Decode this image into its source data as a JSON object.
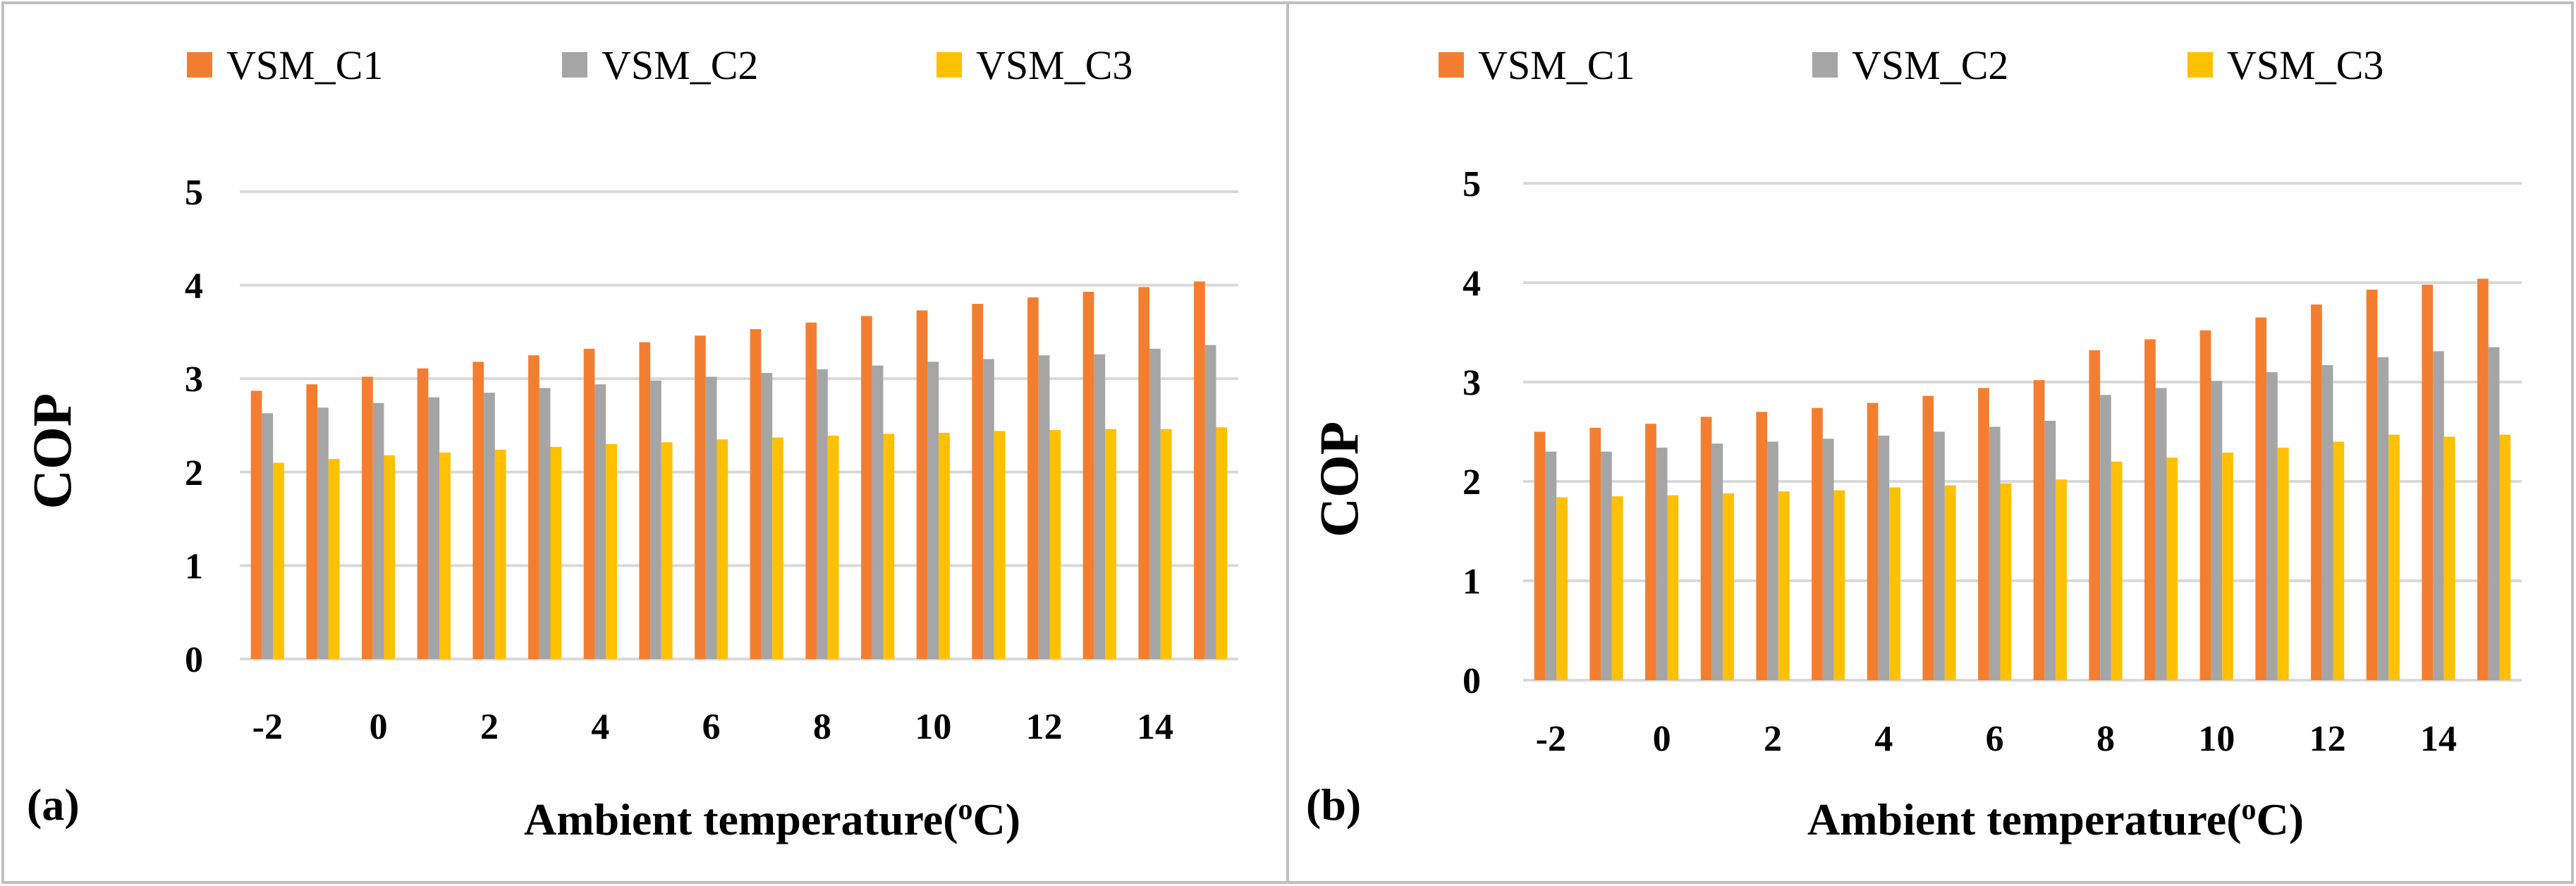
{
  "chart_data": [
    {
      "type": "bar",
      "panel_label": "(a)",
      "x": [
        -2,
        -1,
        0,
        1,
        2,
        3,
        4,
        5,
        6,
        7,
        8,
        9,
        10,
        11,
        12,
        13,
        14,
        15
      ],
      "x_tick_labels": [
        "-2",
        "0",
        "2",
        "4",
        "6",
        "8",
        "10",
        "12",
        "14"
      ],
      "series": [
        {
          "name": "VSM_C1",
          "color": "#F47E30",
          "values": [
            2.87,
            2.94,
            3.02,
            3.11,
            3.18,
            3.25,
            3.32,
            3.39,
            3.46,
            3.53,
            3.6,
            3.67,
            3.73,
            3.8,
            3.87,
            3.93,
            3.98,
            4.04
          ]
        },
        {
          "name": "VSM_C2",
          "color": "#A5A5A5",
          "values": [
            2.63,
            2.69,
            2.74,
            2.8,
            2.85,
            2.9,
            2.94,
            2.98,
            3.02,
            3.06,
            3.1,
            3.14,
            3.18,
            3.21,
            3.25,
            3.26,
            3.32,
            3.36
          ]
        },
        {
          "name": "VSM_C3",
          "color": "#FFC000",
          "values": [
            2.1,
            2.14,
            2.18,
            2.21,
            2.24,
            2.27,
            2.3,
            2.32,
            2.35,
            2.37,
            2.39,
            2.41,
            2.42,
            2.44,
            2.45,
            2.46,
            2.46,
            2.48
          ]
        }
      ],
      "ylabel": "COP",
      "xlabel_main": "Ambient temperature(",
      "xlabel_sup": "o",
      "xlabel_end": "C)",
      "ylim": [
        0,
        5
      ],
      "yticks": [
        "0",
        "1",
        "2",
        "3",
        "4",
        "5"
      ],
      "grid": true,
      "legend_position": "top"
    },
    {
      "type": "bar",
      "panel_label": "(b)",
      "x": [
        -2,
        -1,
        0,
        1,
        2,
        3,
        4,
        5,
        6,
        7,
        8,
        9,
        10,
        11,
        12,
        13,
        14,
        15
      ],
      "x_tick_labels": [
        "-2",
        "0",
        "2",
        "4",
        "6",
        "8",
        "10",
        "12",
        "14"
      ],
      "series": [
        {
          "name": "VSM_C1",
          "color": "#F47E30",
          "values": [
            2.5,
            2.54,
            2.58,
            2.65,
            2.7,
            2.74,
            2.79,
            2.86,
            2.94,
            3.02,
            3.32,
            3.43,
            3.52,
            3.65,
            3.78,
            3.93,
            3.98,
            4.04
          ]
        },
        {
          "name": "VSM_C2",
          "color": "#A5A5A5",
          "values": [
            2.3,
            2.3,
            2.34,
            2.38,
            2.4,
            2.43,
            2.46,
            2.5,
            2.55,
            2.61,
            2.87,
            2.94,
            3.01,
            3.1,
            3.17,
            3.25,
            3.31,
            3.35
          ]
        },
        {
          "name": "VSM_C3",
          "color": "#FFC000",
          "values": [
            1.84,
            1.85,
            1.86,
            1.88,
            1.9,
            1.91,
            1.94,
            1.96,
            1.98,
            2.02,
            2.2,
            2.24,
            2.29,
            2.34,
            2.4,
            2.47,
            2.45,
            2.47
          ]
        }
      ],
      "ylabel": "COP",
      "xlabel_main": "Ambient temperature(",
      "xlabel_sup": "o",
      "xlabel_end": "C)",
      "ylim": [
        0,
        5
      ],
      "yticks": [
        "0",
        "1",
        "2",
        "3",
        "4",
        "5"
      ],
      "grid": true,
      "legend_position": "top"
    }
  ]
}
